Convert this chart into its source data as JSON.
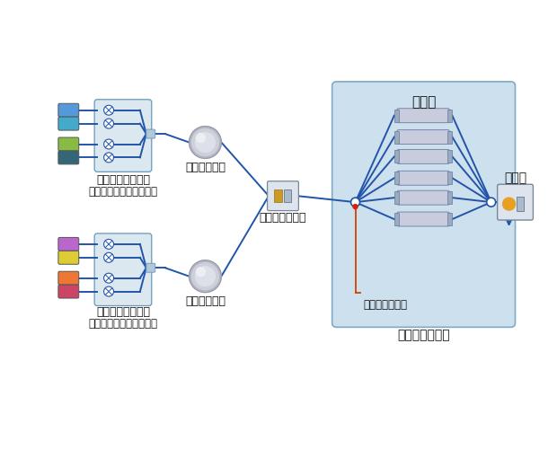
{
  "bg_color": "#ffffff",
  "column_oven_bg": "#cce0ed",
  "column_oven_edge": "#80aac8",
  "blue": "#2255aa",
  "orange": "#cc4400",
  "label_ryouro": "流路切換ユニット",
  "label_naizo": "（送液ユニットに内蔵）",
  "label_sonyuu": "送液ユニット",
  "label_auto": "オートサンプラ",
  "label_karamuoven": "カラムオーブン",
  "label_karamu": "カラム",
  "label_valve": "流路切換バルブ",
  "label_detector": "検出器",
  "upper_bottle_colors": [
    "#5599dd",
    "#44aacc",
    "#88bb44",
    "#336677"
  ],
  "lower_bottle_colors": [
    "#bb66cc",
    "#ddcc33",
    "#ee7733",
    "#cc4466"
  ]
}
